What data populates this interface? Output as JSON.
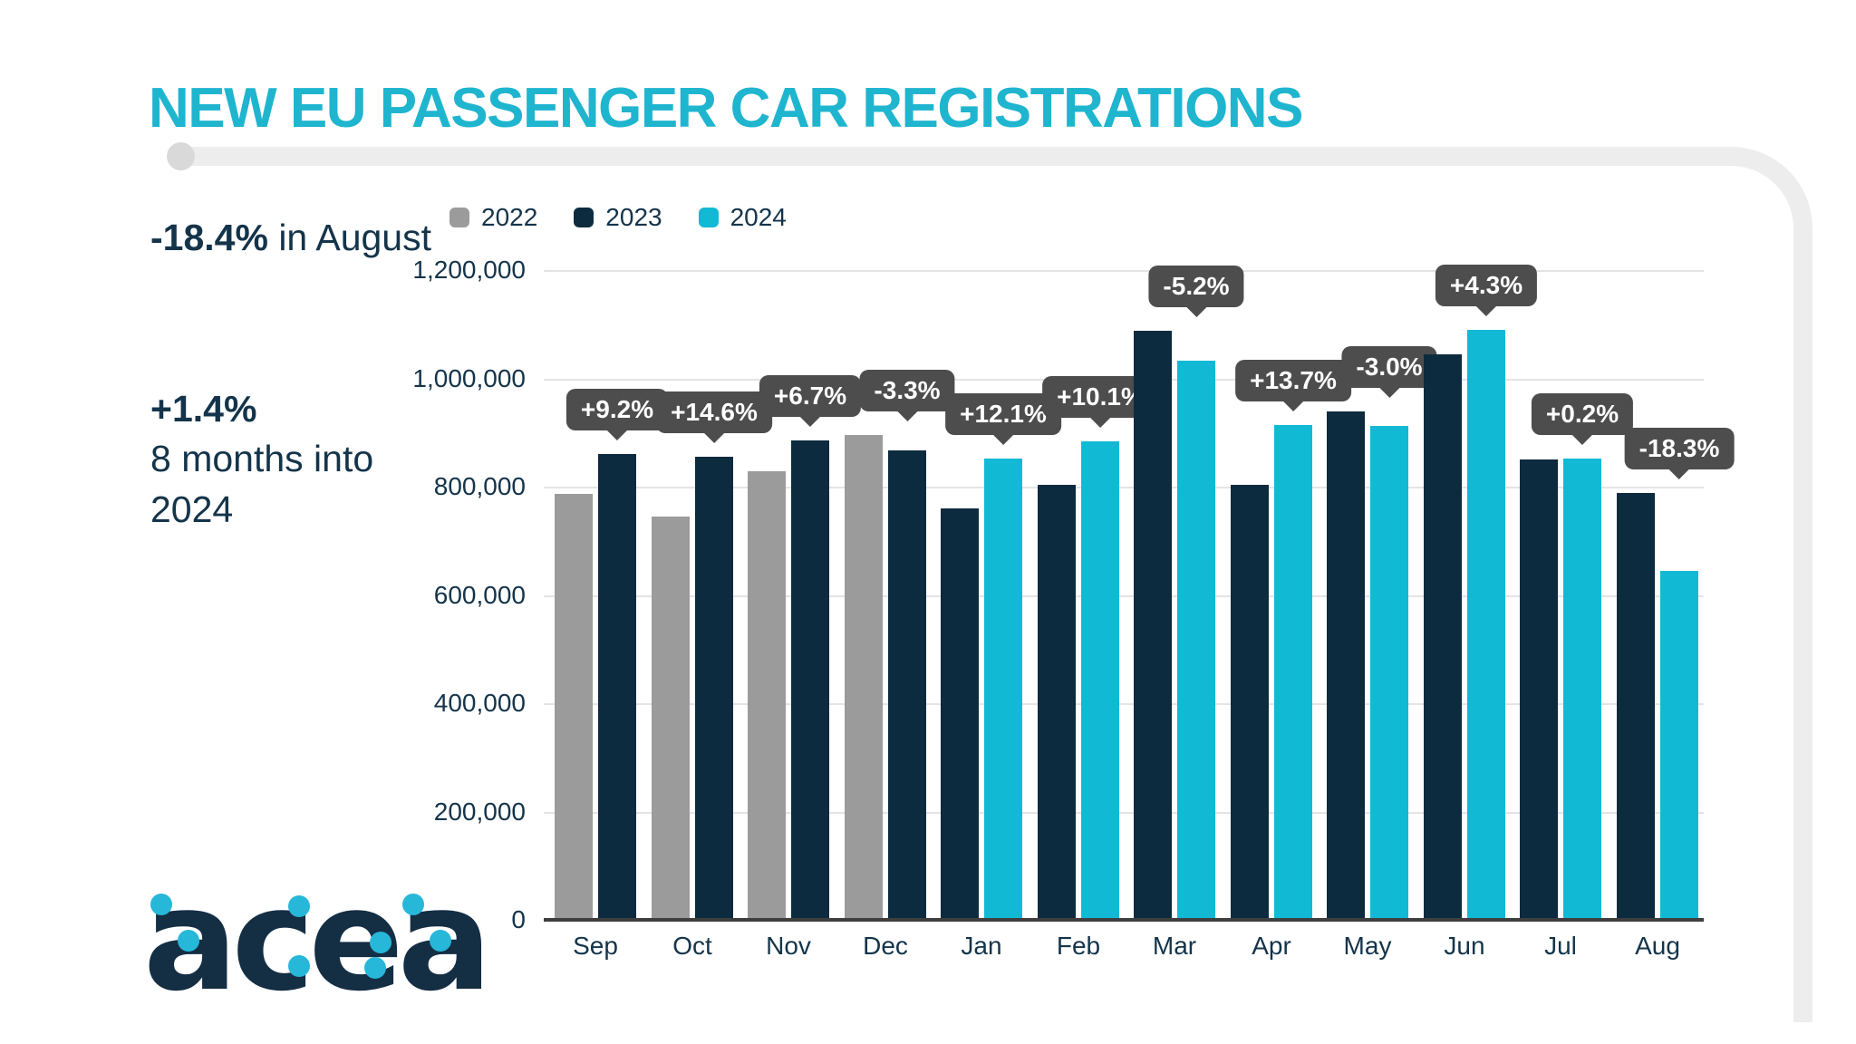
{
  "title": "NEW EU PASSENGER CAR REGISTRATIONS",
  "stats": [
    {
      "value": "-18.4%",
      "suffix": " in August"
    },
    {
      "value": "+1.4%",
      "suffix": "8 months into 2024"
    }
  ],
  "logo_text": "acea",
  "colors": {
    "title_accent": "#1fb5cf",
    "text_navy": "#14344a",
    "tooltip_bg": "#4d4d4d",
    "gridline": "#e4e4e7",
    "axis": "#3f3f3f",
    "frame": "#ededee"
  },
  "chart_data": {
    "type": "bar",
    "title": "NEW EU PASSENGER CAR REGISTRATIONS",
    "categories": [
      "Sep",
      "Oct",
      "Nov",
      "Dec",
      "Jan",
      "Feb",
      "Mar",
      "Apr",
      "May",
      "Jun",
      "Jul",
      "Aug"
    ],
    "series": [
      {
        "name": "2022",
        "color": "#9b9b9b",
        "values": [
          787000,
          745000,
          829000,
          896000,
          null,
          null,
          null,
          null,
          null,
          null,
          null,
          null
        ]
      },
      {
        "name": "2023",
        "color": "#0d2b3e",
        "values": [
          861000,
          855000,
          886000,
          867000,
          760000,
          803000,
          1088000,
          803000,
          939000,
          1045000,
          850000,
          788000
        ]
      },
      {
        "name": "2024",
        "color": "#12b9d5",
        "values": [
          null,
          null,
          null,
          null,
          852000,
          884000,
          1032000,
          914000,
          912000,
          1090000,
          852000,
          644000
        ]
      }
    ],
    "annotations": [
      {
        "category": "Sep",
        "label": "+9.2%",
        "anchor": "2023"
      },
      {
        "category": "Oct",
        "label": "+14.6%",
        "anchor": "2023"
      },
      {
        "category": "Nov",
        "label": "+6.7%",
        "anchor": "2023"
      },
      {
        "category": "Dec",
        "label": "-3.3%",
        "anchor": "2023"
      },
      {
        "category": "Jan",
        "label": "+12.1%",
        "anchor": "2024"
      },
      {
        "category": "Feb",
        "label": "+10.1%",
        "anchor": "2024"
      },
      {
        "category": "Mar",
        "label": "-5.2%",
        "anchor": "2024"
      },
      {
        "category": "Apr",
        "label": "+13.7%",
        "anchor": "2024"
      },
      {
        "category": "May",
        "label": "-3.0%",
        "anchor": "2024"
      },
      {
        "category": "Jun",
        "label": "+4.3%",
        "anchor": "2024"
      },
      {
        "category": "Jul",
        "label": "+0.2%",
        "anchor": "2024"
      },
      {
        "category": "Aug",
        "label": "-18.3%",
        "anchor": "2024"
      }
    ],
    "ylim": [
      0,
      1200000
    ],
    "ytick_labels": [
      "1,200,000",
      "1,000,000",
      "800,000",
      "600,000",
      "400,000",
      "200,000",
      "0"
    ],
    "grid": true,
    "legend_position": "top-left"
  }
}
